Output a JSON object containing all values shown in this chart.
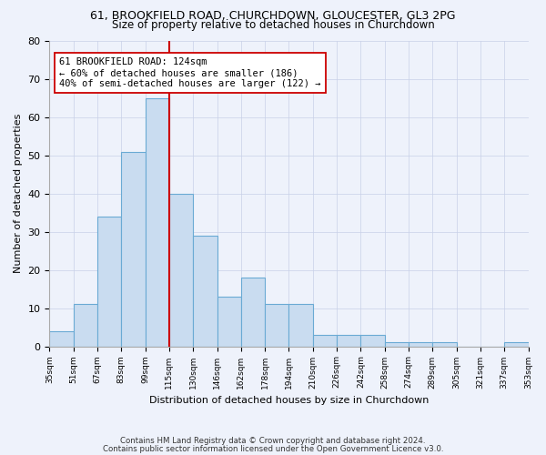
{
  "title_line1": "61, BROOKFIELD ROAD, CHURCHDOWN, GLOUCESTER, GL3 2PG",
  "title_line2": "Size of property relative to detached houses in Churchdown",
  "xlabel": "Distribution of detached houses by size in Churchdown",
  "ylabel": "Number of detached properties",
  "footer_line1": "Contains HM Land Registry data © Crown copyright and database right 2024.",
  "footer_line2": "Contains public sector information licensed under the Open Government Licence v3.0.",
  "bin_labels": [
    "35sqm",
    "51sqm",
    "67sqm",
    "83sqm",
    "99sqm",
    "115sqm",
    "130sqm",
    "146sqm",
    "162sqm",
    "178sqm",
    "194sqm",
    "210sqm",
    "226sqm",
    "242sqm",
    "258sqm",
    "274sqm",
    "289sqm",
    "305sqm",
    "321sqm",
    "337sqm",
    "353sqm"
  ],
  "bar_values": [
    4,
    11,
    34,
    51,
    65,
    40,
    29,
    13,
    18,
    11,
    11,
    3,
    3,
    3,
    1,
    1,
    1,
    0,
    0,
    1
  ],
  "bar_color": "#c9dcf0",
  "bar_edge_color": "#6aaad4",
  "background_color": "#eef2fb",
  "grid_color": "#c8d0e8",
  "property_label": "61 BROOKFIELD ROAD: 124sqm",
  "annotation_line1": "← 60% of detached houses are smaller (186)",
  "annotation_line2": "40% of semi-detached houses are larger (122) →",
  "vline_color": "#cc0000",
  "annotation_box_color": "#ffffff",
  "annotation_box_edge": "#cc0000",
  "ylim": [
    0,
    80
  ],
  "yticks": [
    0,
    10,
    20,
    30,
    40,
    50,
    60,
    70,
    80
  ]
}
